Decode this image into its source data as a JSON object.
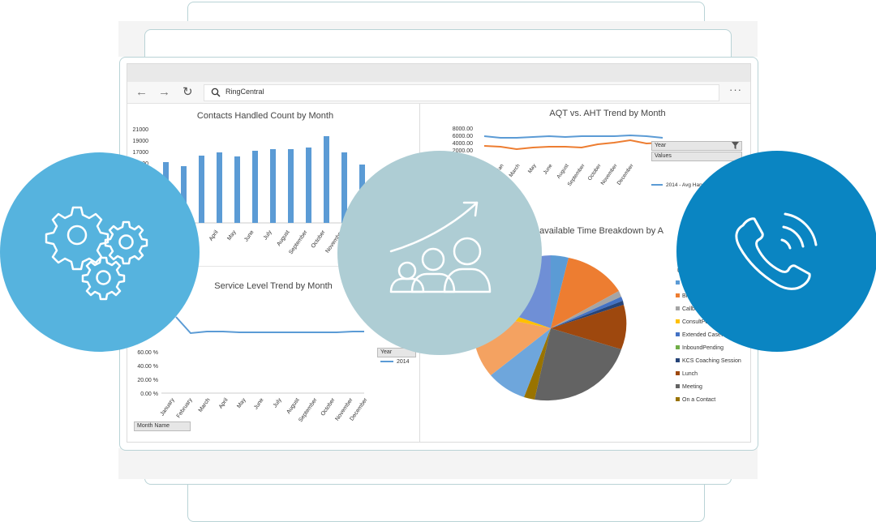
{
  "browser": {
    "back_glyph": "←",
    "forward_glyph": "→",
    "refresh_glyph": "↻",
    "url": "RingCentral",
    "more_glyph": "···"
  },
  "charts": {
    "contacts": {
      "title": "Contacts Handled Count by Month",
      "yticks": [
        "21000",
        "19000",
        "17000",
        "15000"
      ],
      "months": [
        "April",
        "May",
        "June",
        "July",
        "August",
        "September",
        "October",
        "November"
      ],
      "color": "#5b9bd5"
    },
    "aqt": {
      "title": "AQT vs. AHT Trend by Month",
      "yticks": [
        "8000.00",
        "6000.00",
        "4000.00",
        "2000.00"
      ],
      "months": [
        "Jan",
        "March",
        "May",
        "June",
        "August",
        "September",
        "October",
        "November",
        "December"
      ],
      "filter_label": "Year",
      "values_label": "Values",
      "legend": "2014 - Avg Handle Ti",
      "colors": {
        "aht": "#5b9bd5",
        "aqt": "#ed7d31"
      }
    },
    "service": {
      "title": "Service Level Trend by Month",
      "yticks": [
        "60.00 %",
        "40.00 %",
        "20.00 %",
        "0.00 %"
      ],
      "months": [
        "January",
        "February",
        "March",
        "April",
        "May",
        "June",
        "July",
        "August",
        "September",
        "October",
        "November",
        "December"
      ],
      "filter_label": "Year",
      "legend": "2014",
      "month_filter": "Month Name"
    },
    "unavailable": {
      "title": "navailable Time Breakdown by A",
      "legend_header": "Ur",
      "legend": [
        {
          "label": "AC",
          "color": "#5b9bd5"
        },
        {
          "label": "Break",
          "color": "#ed7d31"
        },
        {
          "label": "Callback",
          "color": "#a5a5a5"
        },
        {
          "label": "ConsultPending",
          "color": "#ffc000"
        },
        {
          "label": "Extended Casework",
          "color": "#4472c4"
        },
        {
          "label": "InboundPending",
          "color": "#70ad47"
        },
        {
          "label": "KCS Coaching Session",
          "color": "#264478"
        },
        {
          "label": "Lunch",
          "color": "#9e480e"
        },
        {
          "label": "Meeting",
          "color": "#636363"
        },
        {
          "label": "On a Contact",
          "color": "#997300"
        }
      ]
    }
  },
  "badges": {
    "gears": "gears-icon",
    "growth": "team-growth-icon",
    "phone": "phone-call-icon"
  }
}
